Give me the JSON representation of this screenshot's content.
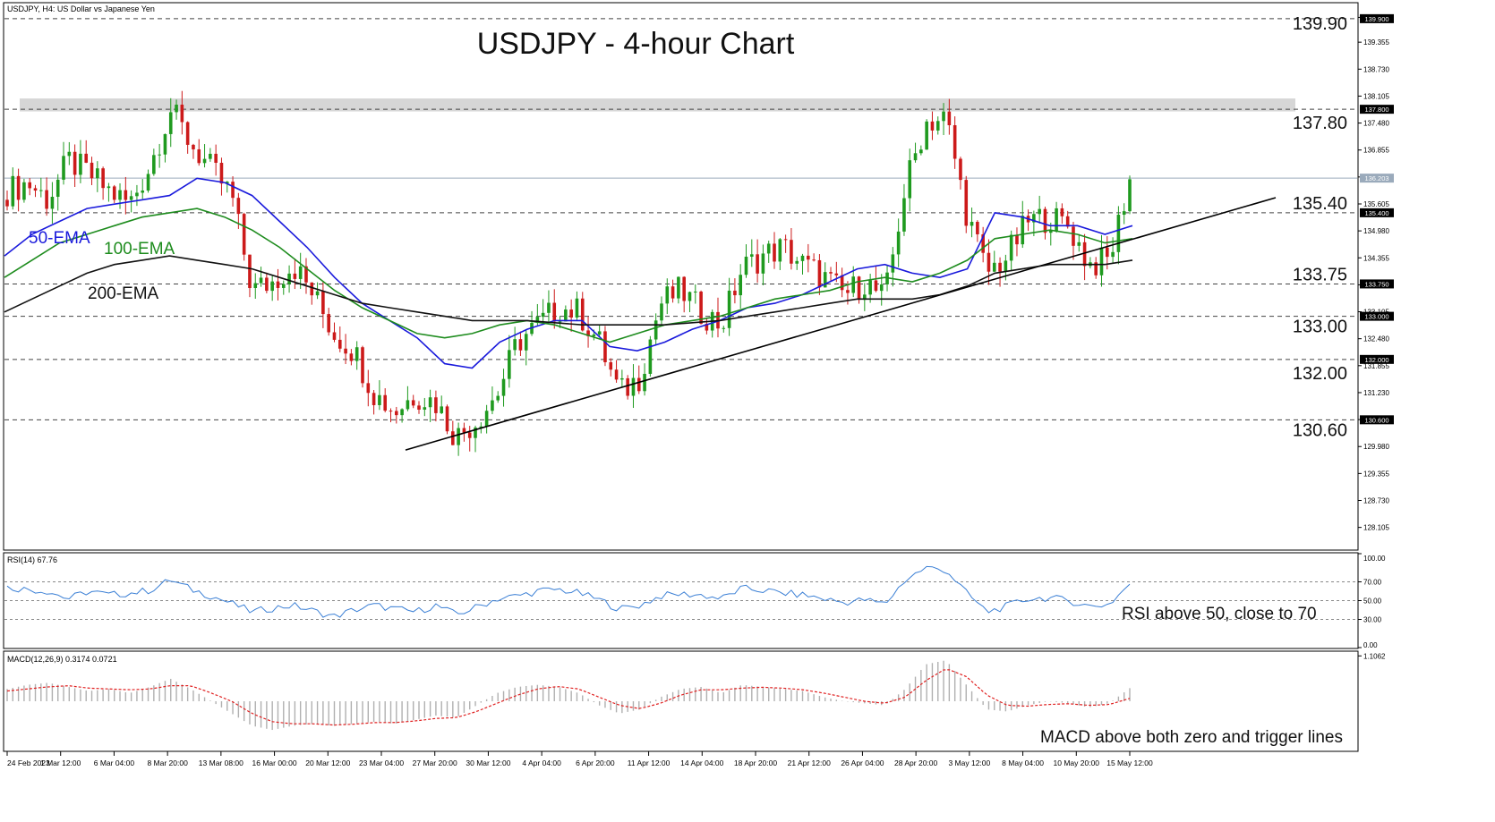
{
  "header": {
    "symbol_label": "USDJPY, H4:  US Dollar vs Japanese Yen",
    "title": "USDJPY - 4-hour Chart"
  },
  "chart_data": {
    "type": "candlestick",
    "price_axis_ticks": [
      "139.930",
      "139.355",
      "138.730",
      "138.105",
      "137.480",
      "136.855",
      "136.230",
      "135.605",
      "134.980",
      "134.355",
      "133.730",
      "133.105",
      "132.480",
      "131.855",
      "131.230",
      "130.605",
      "129.980",
      "129.355",
      "128.730",
      "128.105"
    ],
    "price_axis_values": [
      139.93,
      139.355,
      138.73,
      138.105,
      137.48,
      136.855,
      136.23,
      135.605,
      134.98,
      134.355,
      133.73,
      133.105,
      132.48,
      131.855,
      131.23,
      130.605,
      129.98,
      129.355,
      128.73,
      128.105
    ],
    "ylim": [
      127.6,
      140.25
    ],
    "x_labels": [
      "24 Feb 2023",
      "1 Mar 12:00",
      "6 Mar 04:00",
      "8 Mar 20:00",
      "13 Mar 08:00",
      "16 Mar 00:00",
      "20 Mar 12:00",
      "23 Mar 04:00",
      "27 Mar 20:00",
      "30 Mar 12:00",
      "4 Apr 04:00",
      "6 Apr 20:00",
      "11 Apr 12:00",
      "14 Apr 04:00",
      "18 Apr 20:00",
      "21 Apr 12:00",
      "26 Apr 04:00",
      "28 Apr 20:00",
      "3 May 12:00",
      "8 May 04:00",
      "10 May 20:00",
      "15 May 12:00"
    ],
    "current_price": {
      "value": 136.203,
      "label": "136.203"
    },
    "horizontal_levels": [
      {
        "value": 139.9,
        "label": "139.90",
        "tag": "139.900"
      },
      {
        "value": 137.8,
        "label": "137.80",
        "tag": "137.800"
      },
      {
        "value": 135.4,
        "label": "135.40",
        "tag": "135.400"
      },
      {
        "value": 133.75,
        "label": "133.75",
        "tag": "133.750"
      },
      {
        "value": 133.0,
        "label": "133.00",
        "tag": "133.000"
      },
      {
        "value": 132.0,
        "label": "132.00",
        "tag": "132.000"
      },
      {
        "value": 130.6,
        "label": "130.60",
        "tag": "130.600"
      }
    ],
    "resistance_zone": [
      137.75,
      138.05
    ],
    "trendline": {
      "from": [
        "23 Mar 04:00",
        129.9
      ],
      "to": [
        "15 May 12:00",
        135.3
      ]
    },
    "series": [
      {
        "name": "50-EMA",
        "color": "#1a1adc",
        "values": [
          134.4,
          134.9,
          135.2,
          135.5,
          135.6,
          135.7,
          135.8,
          136.2,
          136.1,
          135.8,
          135.2,
          134.6,
          133.9,
          133.3,
          132.9,
          132.5,
          131.9,
          131.8,
          132.4,
          132.7,
          132.9,
          132.9,
          132.3,
          132.2,
          132.4,
          132.7,
          132.9,
          133.2,
          133.3,
          133.5,
          133.8,
          134.1,
          134.2,
          134.0,
          133.9,
          134.1,
          135.4,
          135.3,
          135.1,
          135.1,
          134.9,
          135.1
        ]
      },
      {
        "name": "100-EMA",
        "color": "#1e8c1e",
        "values": [
          133.9,
          134.3,
          134.7,
          134.9,
          135.1,
          135.3,
          135.4,
          135.5,
          135.3,
          135.0,
          134.6,
          134.1,
          133.6,
          133.2,
          132.9,
          132.6,
          132.5,
          132.6,
          132.8,
          132.9,
          132.8,
          132.6,
          132.4,
          132.6,
          132.8,
          132.9,
          133.0,
          133.2,
          133.4,
          133.5,
          133.6,
          133.8,
          133.9,
          133.8,
          134.0,
          134.3,
          134.8,
          134.9,
          135.0,
          134.9,
          134.7,
          134.8
        ]
      },
      {
        "name": "200-EMA",
        "color": "#111111",
        "values": [
          133.1,
          133.4,
          133.7,
          134.0,
          134.2,
          134.3,
          134.4,
          134.3,
          134.2,
          134.1,
          133.9,
          133.7,
          133.5,
          133.3,
          133.2,
          133.1,
          133.0,
          132.9,
          132.9,
          132.9,
          132.85,
          132.8,
          132.8,
          132.8,
          132.8,
          132.85,
          132.9,
          133.0,
          133.1,
          133.2,
          133.3,
          133.4,
          133.4,
          133.4,
          133.5,
          133.7,
          134.0,
          134.1,
          134.2,
          134.2,
          134.2,
          134.3
        ]
      }
    ],
    "candles_close": [
      135.9,
      136.1,
      135.7,
      136.6,
      136.3,
      135.9,
      135.6,
      136.5,
      137.8,
      137.0,
      136.4,
      135.8,
      133.6,
      133.8,
      134.2,
      133.5,
      132.6,
      132.2,
      131.2,
      130.8,
      131.2,
      131.0,
      130.2,
      130.6,
      131.2,
      132.4,
      132.8,
      133.2,
      133.1,
      132.4,
      131.2,
      131.6,
      133.3,
      133.6,
      133.1,
      132.8,
      134.1,
      134.4,
      134.6,
      134.2,
      133.9,
      133.5,
      133.8,
      133.4,
      136.0,
      137.5,
      137.6,
      135.4,
      134.0,
      134.4,
      135.2,
      135.3,
      135.1,
      134.2,
      134.3,
      136.2
    ],
    "rsi": {
      "label": "RSI(14) 67.76",
      "ticks": [
        "100.00",
        "70.00",
        "50.00",
        "30.00",
        "0.00"
      ],
      "tick_values": [
        100,
        70,
        50,
        30,
        0
      ],
      "levels": [
        70,
        50,
        30
      ],
      "ylim": [
        0,
        100
      ],
      "values": [
        64,
        62,
        60,
        52,
        60,
        56,
        58,
        61,
        72,
        62,
        55,
        47,
        38,
        42,
        45,
        39,
        33,
        40,
        45,
        41,
        38,
        45,
        35,
        43,
        52,
        55,
        60,
        62,
        58,
        51,
        41,
        45,
        55,
        57,
        56,
        52,
        63,
        61,
        58,
        56,
        52,
        48,
        51,
        46,
        72,
        85,
        83,
        58,
        38,
        44,
        52,
        53,
        50,
        44,
        46,
        68
      ]
    },
    "macd": {
      "label": "MACD(12,26,9) 0.3174 0.0721",
      "ticks": [
        "1.1062"
      ],
      "tick_values": [
        1.1062
      ],
      "ylim": [
        -1.2,
        1.2
      ],
      "histogram": [
        0.3,
        0.4,
        0.45,
        0.35,
        0.25,
        0.3,
        0.2,
        0.35,
        0.55,
        0.3,
        0.0,
        -0.3,
        -0.6,
        -0.7,
        -0.6,
        -0.55,
        -0.6,
        -0.55,
        -0.5,
        -0.55,
        -0.45,
        -0.35,
        -0.4,
        -0.1,
        0.2,
        0.35,
        0.4,
        0.35,
        0.2,
        -0.1,
        -0.3,
        -0.2,
        0.1,
        0.3,
        0.35,
        0.2,
        0.4,
        0.35,
        0.3,
        0.25,
        0.1,
        0.0,
        -0.05,
        -0.1,
        0.3,
        0.9,
        1.0,
        0.4,
        -0.2,
        -0.25,
        -0.1,
        0.0,
        -0.05,
        -0.15,
        -0.05,
        0.32
      ],
      "signal": [
        0.25,
        0.3,
        0.35,
        0.38,
        0.32,
        0.3,
        0.28,
        0.3,
        0.38,
        0.38,
        0.2,
        0.0,
        -0.3,
        -0.5,
        -0.55,
        -0.55,
        -0.58,
        -0.56,
        -0.52,
        -0.52,
        -0.48,
        -0.42,
        -0.4,
        -0.25,
        -0.05,
        0.15,
        0.3,
        0.36,
        0.3,
        0.1,
        -0.1,
        -0.18,
        -0.05,
        0.15,
        0.28,
        0.28,
        0.32,
        0.34,
        0.32,
        0.28,
        0.2,
        0.1,
        0.0,
        -0.05,
        0.1,
        0.5,
        0.8,
        0.6,
        0.15,
        -0.1,
        -0.12,
        -0.08,
        -0.06,
        -0.1,
        -0.08,
        0.07
      ]
    },
    "annotations": [
      {
        "text": "50-EMA",
        "color": "#1a1adc"
      },
      {
        "text": "100-EMA",
        "color": "#1e8c1e"
      },
      {
        "text": "200-EMA",
        "color": "#111111"
      },
      {
        "text": "RSI above 50, close to 70",
        "color": "#111111"
      },
      {
        "text": "MACD above both zero and trigger lines",
        "color": "#111111"
      }
    ]
  }
}
